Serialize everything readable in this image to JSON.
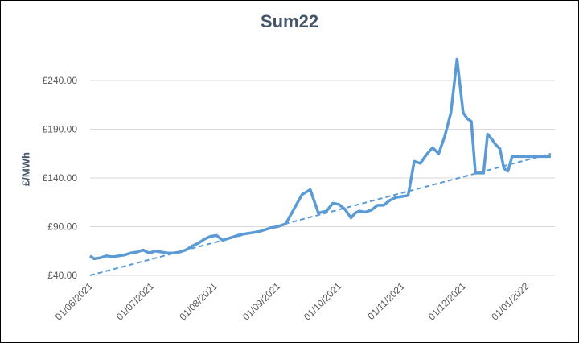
{
  "chart_data": {
    "type": "line",
    "title": "Sum22",
    "xlabel": "",
    "ylabel": "£/MWh",
    "ylim": [
      40,
      240
    ],
    "y_ticks": [
      "£40.00",
      "£90.00",
      "£140.00",
      "£190.00",
      "£240.00"
    ],
    "y_tick_values": [
      40,
      90,
      140,
      190,
      240
    ],
    "x_ticks": [
      "01/06/2021",
      "01/07/2021",
      "01/08/2021",
      "01/09/2021",
      "01/10/2021",
      "01/11/2021",
      "01/12/2021",
      "01/01/2022"
    ],
    "x_tick_dates": [
      "2021-06-01",
      "2021-07-01",
      "2021-08-01",
      "2021-09-01",
      "2021-10-01",
      "2021-11-01",
      "2021-12-01",
      "2022-01-01"
    ],
    "x_range": [
      "2021-06-01",
      "2022-01-15"
    ],
    "grid": "horizontal",
    "colors": {
      "series": "#5b9bd5",
      "trend": "#5b9bd5",
      "grid": "#d9d9d9",
      "title": "#44546a"
    },
    "series": [
      {
        "style": "solid",
        "x": [
          "2021-06-01",
          "2021-06-03",
          "2021-06-06",
          "2021-06-09",
          "2021-06-12",
          "2021-06-15",
          "2021-06-18",
          "2021-06-21",
          "2021-06-24",
          "2021-06-27",
          "2021-06-30",
          "2021-07-03",
          "2021-07-06",
          "2021-07-09",
          "2021-07-12",
          "2021-07-15",
          "2021-07-18",
          "2021-07-21",
          "2021-07-24",
          "2021-07-27",
          "2021-07-30",
          "2021-08-02",
          "2021-08-05",
          "2021-08-08",
          "2021-08-11",
          "2021-08-14",
          "2021-08-17",
          "2021-08-20",
          "2021-08-23",
          "2021-08-26",
          "2021-08-29",
          "2021-09-01",
          "2021-09-05",
          "2021-09-09",
          "2021-09-13",
          "2021-09-17",
          "2021-09-21",
          "2021-09-25",
          "2021-09-28",
          "2021-10-01",
          "2021-10-04",
          "2021-10-07",
          "2021-10-09",
          "2021-10-11",
          "2021-10-14",
          "2021-10-17",
          "2021-10-20",
          "2021-10-23",
          "2021-10-26",
          "2021-10-29",
          "2021-11-01",
          "2021-11-04",
          "2021-11-07",
          "2021-11-10",
          "2021-11-13",
          "2021-11-16",
          "2021-11-19",
          "2021-11-22",
          "2021-11-25",
          "2021-11-28",
          "2021-12-01",
          "2021-12-03",
          "2021-12-05",
          "2021-12-07",
          "2021-12-09",
          "2021-12-11",
          "2021-12-13",
          "2021-12-15",
          "2021-12-17",
          "2021-12-19",
          "2021-12-21",
          "2021-12-22",
          "2021-12-23",
          "2021-12-25",
          "2021-12-29",
          "2021-12-31",
          "2022-01-01",
          "2022-01-03",
          "2022-01-04",
          "2022-01-05",
          "2022-01-07",
          "2022-01-09",
          "2022-01-11",
          "2022-01-12",
          "2022-01-13"
        ],
        "values": [
          60,
          57,
          58,
          60,
          59,
          60,
          61,
          63,
          64,
          66,
          63,
          65,
          64,
          63,
          63,
          64,
          66,
          70,
          73,
          77,
          80,
          81,
          76,
          78,
          80,
          82,
          83,
          84,
          85,
          87,
          89,
          90,
          93,
          108,
          123,
          128,
          104,
          106,
          114,
          113,
          108,
          99,
          104,
          106,
          105,
          107,
          112,
          112,
          117,
          120,
          121,
          122,
          157,
          155,
          164,
          171,
          165,
          183,
          207,
          262,
          207,
          201,
          198,
          145,
          145,
          145,
          185,
          180,
          174,
          170,
          150,
          148,
          147,
          162,
          162,
          162,
          162,
          162,
          162,
          162,
          162,
          162,
          162,
          162,
          162
        ]
      },
      {
        "style": "dashed",
        "x": [
          "2021-06-01",
          "2022-01-13"
        ],
        "values": [
          40,
          165
        ]
      }
    ]
  }
}
